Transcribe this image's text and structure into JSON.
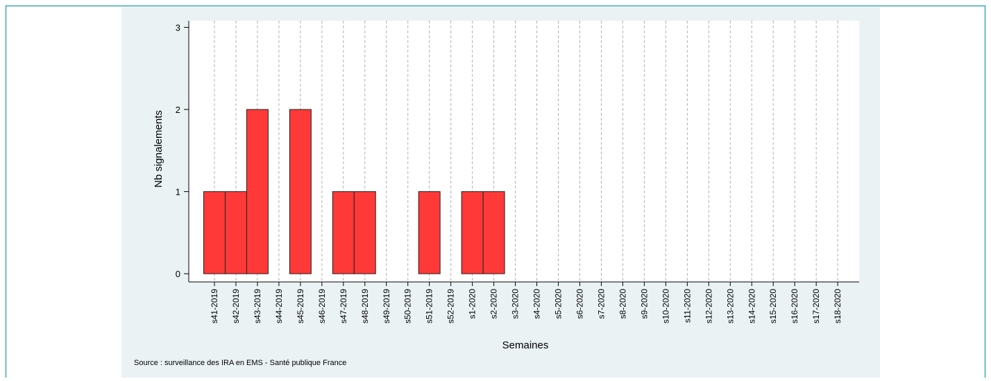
{
  "chart_data": {
    "type": "bar",
    "categories": [
      "s41-2019",
      "s42-2019",
      "s43-2019",
      "s44-2019",
      "s45-2019",
      "s46-2019",
      "s47-2019",
      "s48-2019",
      "s49-2019",
      "s50-2019",
      "s51-2019",
      "s52-2019",
      "s1-2020",
      "s2-2020",
      "s3-2020",
      "s4-2020",
      "s5-2020",
      "s6-2020",
      "s7-2020",
      "s8-2020",
      "s9-2020",
      "s10-2020",
      "s11-2020",
      "s12-2020",
      "s13-2020",
      "s14-2020",
      "s15-2020",
      "s16-2020",
      "s17-2020",
      "s18-2020"
    ],
    "values": [
      1,
      1,
      2,
      0,
      2,
      0,
      1,
      1,
      0,
      0,
      1,
      0,
      1,
      1,
      0,
      0,
      0,
      0,
      0,
      0,
      0,
      0,
      0,
      0,
      0,
      0,
      0,
      0,
      0,
      0
    ],
    "color": "#ff3838",
    "ylim": [
      -0.1,
      3.08
    ],
    "yticks": [
      0,
      1,
      2,
      3
    ],
    "xlabel": "Semaines",
    "ylabel": "Nb signalements",
    "source": "Source : surveillance des IRA en EMS - Santé publique France",
    "grid": true
  }
}
